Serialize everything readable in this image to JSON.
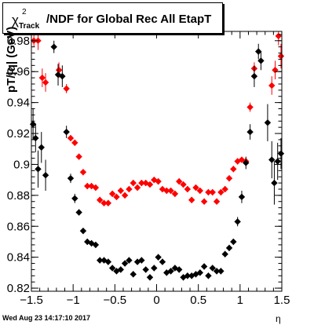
{
  "title": {
    "chi_symbol": "χ",
    "superscript": "2",
    "subscript": "Track",
    "text": "/NDF for Global Rec All EtapT"
  },
  "ylabel": "pT/|q| (GeV)",
  "xlabel": "η",
  "timestamp": "Wed Aug 23 14:17:10 2017",
  "colors": {
    "series_black": "#000000",
    "series_red": "#ff0000",
    "frame": "#000000"
  },
  "chart_data": {
    "type": "scatter",
    "xlim": [
      -1.5,
      1.5
    ],
    "ylim": [
      0.818,
      0.986
    ],
    "x_ticks": [
      {
        "value": -1.5,
        "label": "−1.5"
      },
      {
        "value": -1.0,
        "label": "−1"
      },
      {
        "value": -0.5,
        "label": "−0.5"
      },
      {
        "value": 0,
        "label": "0"
      },
      {
        "value": 0.5,
        "label": "0.5"
      },
      {
        "value": 1.0,
        "label": "1"
      },
      {
        "value": 1.5,
        "label": "1.5"
      }
    ],
    "y_ticks": [
      {
        "value": 0.82,
        "label": "0.82"
      },
      {
        "value": 0.84,
        "label": "0.84"
      },
      {
        "value": 0.86,
        "label": "0.86"
      },
      {
        "value": 0.88,
        "label": "0.88"
      },
      {
        "value": 0.9,
        "label": "0.9"
      },
      {
        "value": 0.92,
        "label": "0.92"
      },
      {
        "value": 0.94,
        "label": "0.94"
      },
      {
        "value": 0.96,
        "label": "0.96"
      },
      {
        "value": 0.98,
        "label": "0.98"
      }
    ],
    "series": [
      {
        "color": "#ff0000",
        "points": [
          [
            -1.47,
            0.98,
            0.004
          ],
          [
            -1.42,
            0.98,
            0.006
          ],
          [
            -1.37,
            0.956,
            0.006
          ],
          [
            -1.33,
            0.953,
            0.006
          ],
          [
            -1.17,
            0.961,
            0.005
          ],
          [
            -1.08,
            0.949,
            0.003
          ],
          [
            -1.03,
            0.917,
            0.002
          ],
          [
            -0.98,
            0.914,
            0.002
          ],
          [
            -0.93,
            0.905,
            0.002
          ],
          [
            -0.88,
            0.895,
            0.002
          ],
          [
            -0.83,
            0.886,
            0.002
          ],
          [
            -0.78,
            0.886,
            0.002
          ],
          [
            -0.73,
            0.885,
            0.002
          ],
          [
            -0.68,
            0.877,
            0.002
          ],
          [
            -0.63,
            0.875,
            0.002
          ],
          [
            -0.58,
            0.875,
            0.002
          ],
          [
            -0.53,
            0.881,
            0.002
          ],
          [
            -0.48,
            0.879,
            0.002
          ],
          [
            -0.43,
            0.883,
            0.002
          ],
          [
            -0.38,
            0.88,
            0.002
          ],
          [
            -0.33,
            0.884,
            0.002
          ],
          [
            -0.28,
            0.888,
            0.002
          ],
          [
            -0.23,
            0.885,
            0.002
          ],
          [
            -0.18,
            0.888,
            0.002
          ],
          [
            -0.13,
            0.888,
            0.002
          ],
          [
            -0.08,
            0.887,
            0.002
          ],
          [
            -0.03,
            0.89,
            0.002
          ],
          [
            0.02,
            0.889,
            0.002
          ],
          [
            0.07,
            0.884,
            0.002
          ],
          [
            0.12,
            0.883,
            0.002
          ],
          [
            0.17,
            0.883,
            0.002
          ],
          [
            0.22,
            0.881,
            0.002
          ],
          [
            0.27,
            0.889,
            0.002
          ],
          [
            0.32,
            0.887,
            0.002
          ],
          [
            0.37,
            0.884,
            0.002
          ],
          [
            0.42,
            0.877,
            0.002
          ],
          [
            0.47,
            0.885,
            0.002
          ],
          [
            0.52,
            0.883,
            0.002
          ],
          [
            0.57,
            0.876,
            0.002
          ],
          [
            0.62,
            0.882,
            0.002
          ],
          [
            0.67,
            0.882,
            0.002
          ],
          [
            0.72,
            0.876,
            0.002
          ],
          [
            0.77,
            0.882,
            0.002
          ],
          [
            0.82,
            0.884,
            0.002
          ],
          [
            0.87,
            0.891,
            0.002
          ],
          [
            0.92,
            0.897,
            0.002
          ],
          [
            0.97,
            0.902,
            0.002
          ],
          [
            1.02,
            0.903,
            0.002
          ],
          [
            1.07,
            0.902,
            0.002
          ],
          [
            1.12,
            0.937,
            0.003
          ],
          [
            1.17,
            0.962,
            0.004
          ],
          [
            1.38,
            0.951,
            0.006
          ],
          [
            1.42,
            0.961,
            0.006
          ],
          [
            1.46,
            0.983,
            0.006
          ],
          [
            1.49,
            0.97,
            0.008
          ]
        ]
      },
      {
        "color": "#000000",
        "points": [
          [
            -1.48,
            0.926,
            0.01
          ],
          [
            -1.45,
            0.917,
            0.009
          ],
          [
            -1.42,
            0.897,
            0.012
          ],
          [
            -1.38,
            0.911,
            0.01
          ],
          [
            -1.33,
            0.893,
            0.01
          ],
          [
            -1.23,
            0.976,
            0.004
          ],
          [
            -1.18,
            0.958,
            0.007
          ],
          [
            -1.13,
            0.957,
            0.007
          ],
          [
            -1.08,
            0.921,
            0.004
          ],
          [
            -1.03,
            0.891,
            0.003
          ],
          [
            -0.98,
            0.878,
            0.003
          ],
          [
            -0.93,
            0.869,
            0.002
          ],
          [
            -0.88,
            0.857,
            0.002
          ],
          [
            -0.83,
            0.85,
            0.002
          ],
          [
            -0.78,
            0.849,
            0.002
          ],
          [
            -0.73,
            0.848,
            0.002
          ],
          [
            -0.68,
            0.838,
            0.002
          ],
          [
            -0.63,
            0.838,
            0.002
          ],
          [
            -0.58,
            0.837,
            0.002
          ],
          [
            -0.53,
            0.833,
            0.002
          ],
          [
            -0.48,
            0.831,
            0.002
          ],
          [
            -0.43,
            0.832,
            0.002
          ],
          [
            -0.38,
            0.836,
            0.002
          ],
          [
            -0.33,
            0.838,
            0.002
          ],
          [
            -0.28,
            0.829,
            0.002
          ],
          [
            -0.23,
            0.837,
            0.002
          ],
          [
            -0.18,
            0.838,
            0.002
          ],
          [
            -0.13,
            0.832,
            0.002
          ],
          [
            -0.08,
            0.827,
            0.002
          ],
          [
            -0.03,
            0.833,
            0.002
          ],
          [
            0.02,
            0.84,
            0.002
          ],
          [
            0.07,
            0.837,
            0.002
          ],
          [
            0.12,
            0.83,
            0.002
          ],
          [
            0.17,
            0.831,
            0.002
          ],
          [
            0.22,
            0.833,
            0.002
          ],
          [
            0.27,
            0.832,
            0.002
          ],
          [
            0.32,
            0.827,
            0.002
          ],
          [
            0.37,
            0.828,
            0.002
          ],
          [
            0.42,
            0.828,
            0.002
          ],
          [
            0.47,
            0.829,
            0.002
          ],
          [
            0.52,
            0.83,
            0.002
          ],
          [
            0.57,
            0.834,
            0.002
          ],
          [
            0.62,
            0.828,
            0.002
          ],
          [
            0.67,
            0.833,
            0.002
          ],
          [
            0.72,
            0.831,
            0.002
          ],
          [
            0.77,
            0.831,
            0.002
          ],
          [
            0.82,
            0.842,
            0.002
          ],
          [
            0.87,
            0.846,
            0.002
          ],
          [
            0.92,
            0.85,
            0.002
          ],
          [
            0.97,
            0.863,
            0.003
          ],
          [
            1.02,
            0.879,
            0.004
          ],
          [
            1.07,
            0.901,
            0.004
          ],
          [
            1.12,
            0.921,
            0.005
          ],
          [
            1.17,
            0.957,
            0.007
          ],
          [
            1.22,
            0.973,
            0.005
          ],
          [
            1.25,
            0.967,
            0.006
          ],
          [
            1.33,
            0.927,
            0.012
          ],
          [
            1.38,
            0.903,
            0.012
          ],
          [
            1.41,
            0.888,
            0.014
          ],
          [
            1.45,
            0.902,
            0.012
          ],
          [
            1.49,
            0.907,
            0.01
          ]
        ]
      }
    ]
  }
}
